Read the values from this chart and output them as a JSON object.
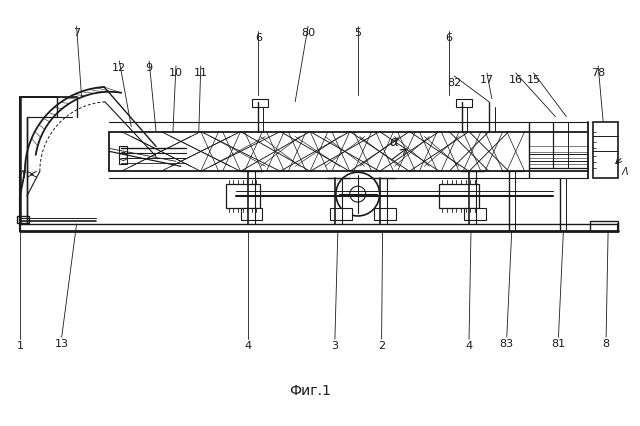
{
  "caption": "Фиг.1",
  "bg_color": "#ffffff",
  "line_color": "#1a1a1a",
  "figsize": [
    6.4,
    4.27
  ],
  "dpi": 100
}
